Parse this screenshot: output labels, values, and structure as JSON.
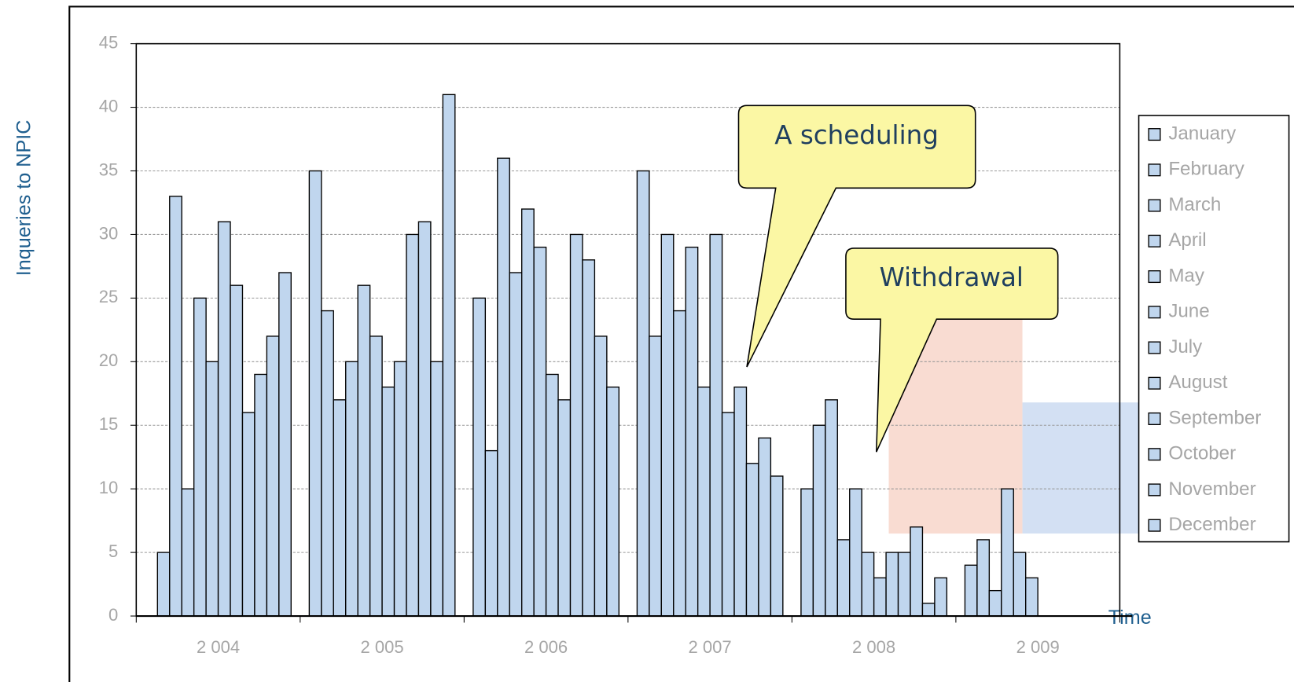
{
  "chart_data": {
    "type": "bar",
    "ylabel": "Inqueries to NPIC",
    "xlabel": "Time",
    "annotations": [
      "A scheduling",
      "Withdrawal"
    ],
    "categories": [
      "2 004",
      "2 005",
      "2 006",
      "2 007",
      "2 008",
      "2 009"
    ],
    "series": [
      {
        "name": "January",
        "color": "#c0d6ee",
        "values": [
          null,
          35,
          25,
          35,
          10,
          4
        ]
      },
      {
        "name": "February",
        "color": "#c0d6ee",
        "values": [
          5,
          24,
          13,
          22,
          15,
          6
        ]
      },
      {
        "name": "March",
        "color": "#c0d6ee",
        "values": [
          33,
          17,
          36,
          30,
          17,
          2
        ]
      },
      {
        "name": "April",
        "color": "#c0d6ee",
        "values": [
          10,
          20,
          27,
          24,
          6,
          10
        ]
      },
      {
        "name": "May",
        "color": "#c0d6ee",
        "values": [
          25,
          26,
          32,
          29,
          10,
          5
        ]
      },
      {
        "name": "June",
        "color": "#c0d6ee",
        "values": [
          20,
          22,
          29,
          18,
          5,
          3
        ]
      },
      {
        "name": "July",
        "color": "#c0d6ee",
        "values": [
          31,
          18,
          19,
          30,
          3,
          null
        ]
      },
      {
        "name": "August",
        "color": "#c0d6ee",
        "values": [
          26,
          20,
          17,
          16,
          5,
          null
        ]
      },
      {
        "name": "September",
        "color": "#c0d6ee",
        "values": [
          16,
          30,
          30,
          18,
          5,
          null
        ]
      },
      {
        "name": "October",
        "color": "#c0d6ee",
        "values": [
          19,
          31,
          28,
          12,
          7,
          null
        ]
      },
      {
        "name": "November",
        "color": "#c0d6ee",
        "values": [
          22,
          20,
          22,
          14,
          1,
          null
        ]
      },
      {
        "name": "December",
        "color": "#c0d6ee",
        "values": [
          27,
          41,
          18,
          11,
          3,
          null
        ]
      }
    ],
    "ylim": [
      0,
      45
    ],
    "yticks": [
      0,
      5,
      10,
      15,
      20,
      25,
      30,
      35,
      40,
      45
    ],
    "grid": true,
    "legend": "right"
  }
}
